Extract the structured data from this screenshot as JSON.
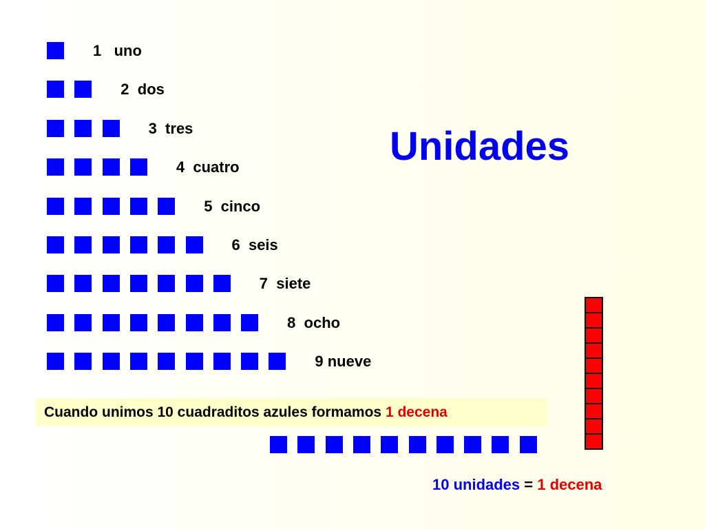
{
  "title": "Unidades",
  "rows": [
    {
      "count": 1,
      "label": "1   uno"
    },
    {
      "count": 2,
      "label": "2  dos"
    },
    {
      "count": 3,
      "label": "3  tres"
    },
    {
      "count": 4,
      "label": "4  cuatro"
    },
    {
      "count": 5,
      "label": "5  cinco"
    },
    {
      "count": 6,
      "label": "6  seis"
    },
    {
      "count": 7,
      "label": "7  siete"
    },
    {
      "count": 8,
      "label": "8  ocho"
    },
    {
      "count": 9,
      "label": "9 nueve"
    }
  ],
  "note": {
    "text": "Cuando unimos 10 cuadraditos azules formamos ",
    "highlight": "1 decena"
  },
  "bottom_row_count": 10,
  "rod_cells": 10,
  "equation": {
    "left": "10 unidades",
    "equals": " = ",
    "right": "1 decena"
  },
  "colors": {
    "unit": "#0000ff",
    "ten": "#ff0000",
    "note_bg": "#ffffcc"
  }
}
